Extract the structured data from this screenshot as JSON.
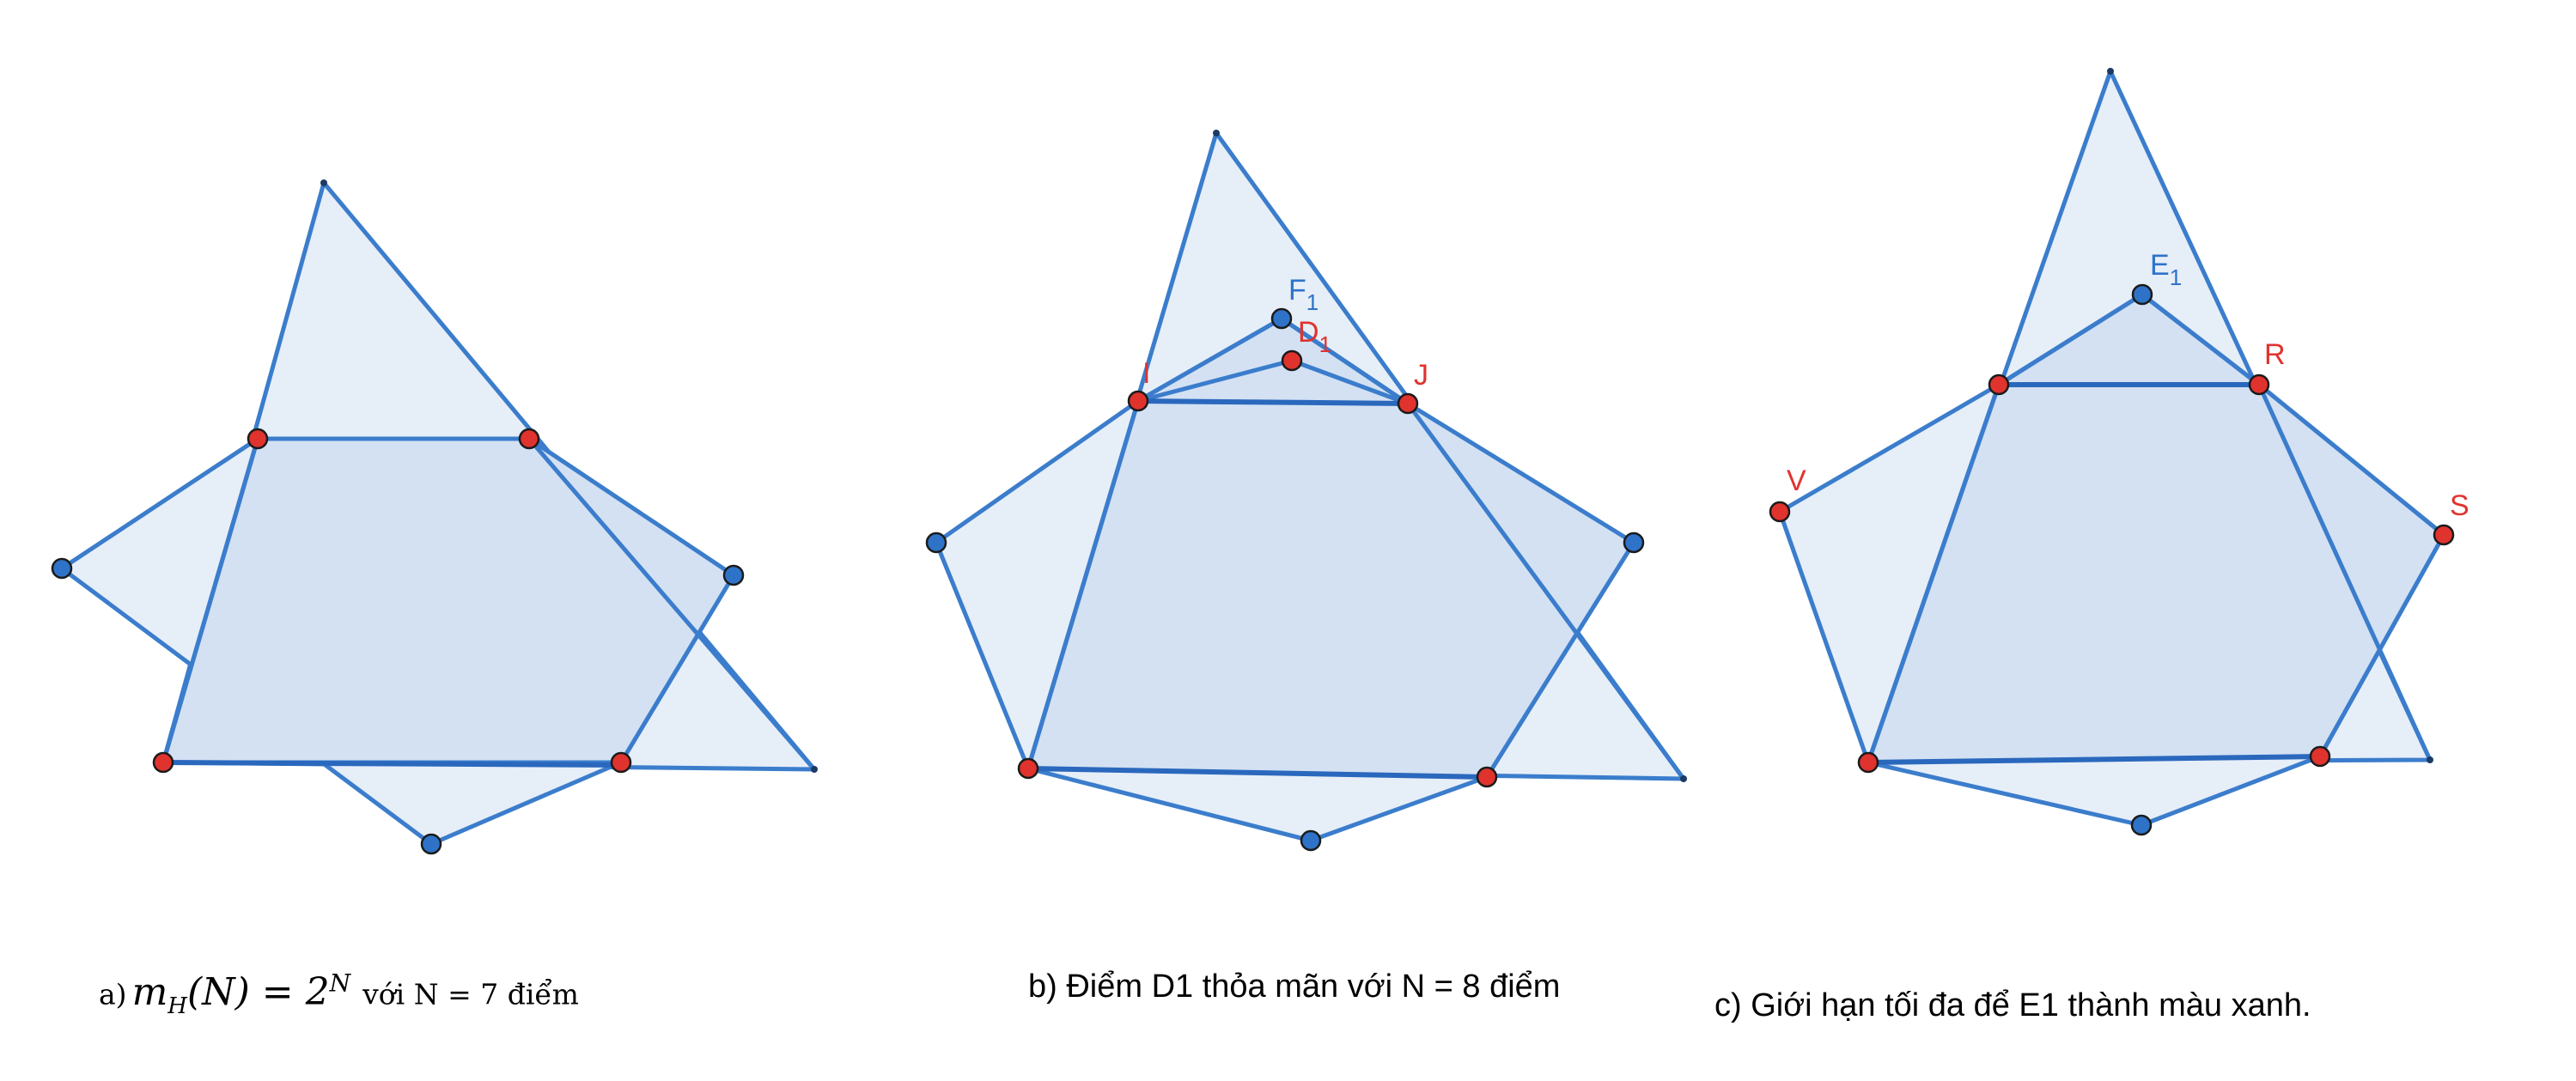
{
  "captions": {
    "a_prefix": "a)",
    "a_formula": "m_H(N) = 2^N",
    "a_formula_lhs": "m",
    "a_formula_sub": "H",
    "a_formula_mid": "(N) = 2",
    "a_formula_sup": "N",
    "a_suffix": "với N = 7 điểm",
    "b": "b) Điểm D1 thỏa mãn với N = 8 điểm",
    "c": "c) Giới hạn tối đa để E1 thành màu xanh."
  },
  "labels": {
    "b_F": "F",
    "b_F_sub": "1",
    "b_D": "D",
    "b_D_sub": "1",
    "b_I": "I",
    "b_J": "J",
    "c_E": "E",
    "c_E_sub": "1",
    "c_R": "R",
    "c_V": "V",
    "c_S": "S"
  },
  "colors": {
    "point_red": "#e0332e",
    "point_blue": "#2e73c8",
    "edge": "#3b7dcc",
    "fill_light": "#e6eef8",
    "fill_dark": "#d3e1f3"
  },
  "panels": [
    {
      "id": "a",
      "red_points": 4,
      "blue_points": 3
    },
    {
      "id": "b",
      "red_points": 5,
      "blue_points": 4
    },
    {
      "id": "c",
      "red_points": 6,
      "blue_points": 2
    }
  ]
}
